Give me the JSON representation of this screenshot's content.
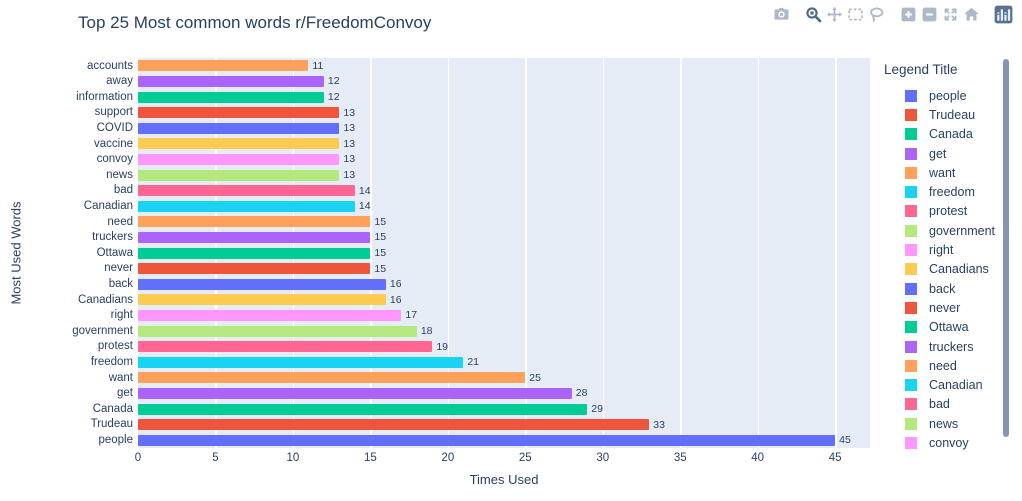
{
  "title": "Top 25 Most common words r/FreedomConvoy",
  "modebar": {
    "icons": [
      "camera-icon",
      "zoom-icon",
      "pan-icon",
      "box-select-icon",
      "lasso-select-icon",
      "zoom-in-icon",
      "zoom-out-icon",
      "autoscale-icon",
      "reset-home-icon",
      "plotly-logo-icon"
    ],
    "active_icon": "zoom-icon"
  },
  "chart_data": {
    "type": "bar",
    "orientation": "horizontal",
    "title": "Top 25 Most common words r/FreedomConvoy",
    "xlabel": "Times Used",
    "ylabel": "Most Used Words",
    "xlim": [
      0,
      47.25
    ],
    "xticks": [
      0,
      5,
      10,
      15,
      20,
      25,
      30,
      35,
      40,
      45
    ],
    "grid": true,
    "value_labels_shown": true,
    "categories_top_to_bottom": [
      "accounts",
      "away",
      "information",
      "support",
      "COVID",
      "vaccine",
      "convoy",
      "news",
      "bad",
      "Canadian",
      "need",
      "truckers",
      "Ottawa",
      "never",
      "back",
      "Canadians",
      "right",
      "government",
      "protest",
      "freedom",
      "want",
      "get",
      "Canada",
      "Trudeau",
      "people"
    ],
    "values": [
      11,
      12,
      12,
      13,
      13,
      13,
      13,
      13,
      14,
      14,
      15,
      15,
      15,
      15,
      16,
      16,
      17,
      18,
      19,
      21,
      25,
      28,
      29,
      33,
      45
    ],
    "bar_colors": [
      "#FFA15A",
      "#AB63FA",
      "#00CC96",
      "#EF553B",
      "#636EFA",
      "#FECB52",
      "#FF97FF",
      "#B6E880",
      "#FF6692",
      "#19D3F3",
      "#FFA15A",
      "#AB63FA",
      "#00CC96",
      "#EF553B",
      "#636EFA",
      "#FECB52",
      "#FF97FF",
      "#B6E880",
      "#FF6692",
      "#19D3F3",
      "#FFA15A",
      "#AB63FA",
      "#00CC96",
      "#EF553B",
      "#636EFA"
    ],
    "legend": {
      "title": "Legend Title",
      "position": "right",
      "scrollable": true,
      "items": [
        {
          "label": "people",
          "color": "#636EFA"
        },
        {
          "label": "Trudeau",
          "color": "#EF553B"
        },
        {
          "label": "Canada",
          "color": "#00CC96"
        },
        {
          "label": "get",
          "color": "#AB63FA"
        },
        {
          "label": "want",
          "color": "#FFA15A"
        },
        {
          "label": "freedom",
          "color": "#19D3F3"
        },
        {
          "label": "protest",
          "color": "#FF6692"
        },
        {
          "label": "government",
          "color": "#B6E880"
        },
        {
          "label": "right",
          "color": "#FF97FF"
        },
        {
          "label": "Canadians",
          "color": "#FECB52"
        },
        {
          "label": "back",
          "color": "#636EFA"
        },
        {
          "label": "never",
          "color": "#EF553B"
        },
        {
          "label": "Ottawa",
          "color": "#00CC96"
        },
        {
          "label": "truckers",
          "color": "#AB63FA"
        },
        {
          "label": "need",
          "color": "#FFA15A"
        },
        {
          "label": "Canadian",
          "color": "#19D3F3"
        },
        {
          "label": "bad",
          "color": "#FF6692"
        },
        {
          "label": "news",
          "color": "#B6E880"
        },
        {
          "label": "convoy",
          "color": "#FF97FF"
        }
      ]
    }
  },
  "colors": {
    "background": "#FFFFFF",
    "plot_bg": "#E5ECF6",
    "gridline": "#FFFFFF",
    "text": "#2A3F5F",
    "modebar_icon": "#ADB9C6",
    "modebar_icon_active": "#506784",
    "plotly_logo_bg": "#587194",
    "scrollbar": "#8696B0"
  }
}
